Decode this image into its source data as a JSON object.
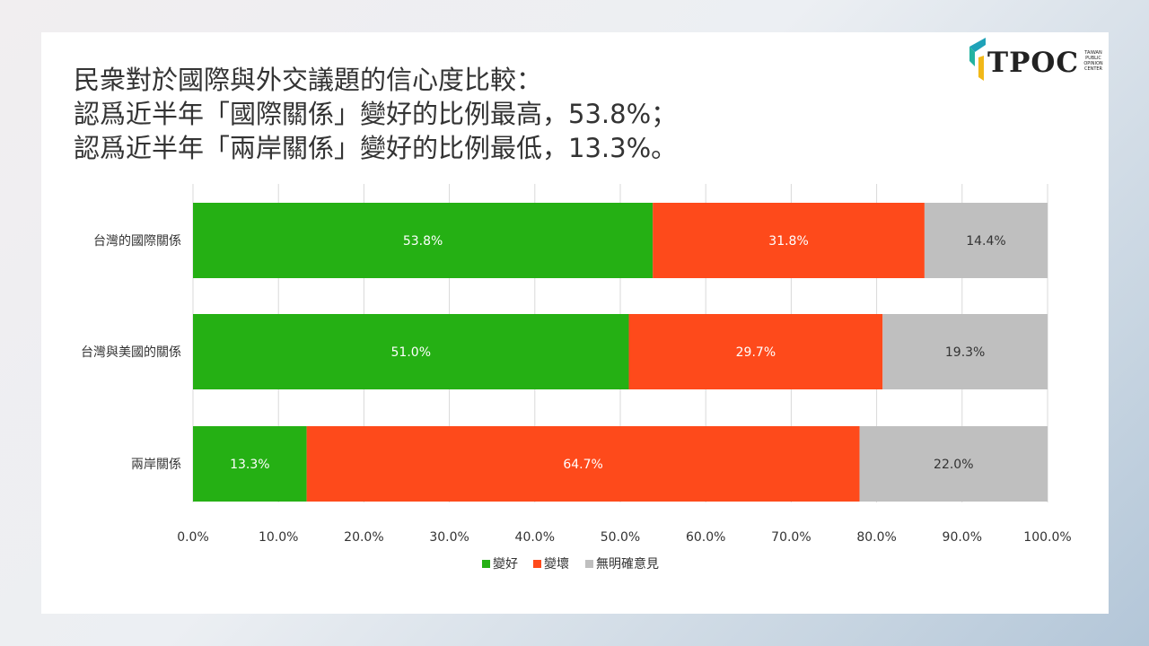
{
  "title_lines": [
    "民衆對於國際與外交議題的信心度比較：",
    "認爲近半年「國際關係」變好的比例最高，53.8%；",
    "認爲近半年「兩岸關係」變好的比例最低，13.3%。"
  ],
  "logo": {
    "text": "TPOC",
    "subtext": "TAIWAN PUBLIC OPINION CENTER"
  },
  "colors": {
    "good": "#25b014",
    "bad": "#fe4a1b",
    "unsure": "#bfbfbf"
  },
  "chart_data": {
    "type": "bar",
    "orientation": "horizontal",
    "stacked": true,
    "categories": [
      "台灣的國際關係",
      "台灣與美國的關係",
      "兩岸關係"
    ],
    "series": [
      {
        "name": "變好",
        "values": [
          53.8,
          51.0,
          13.3
        ]
      },
      {
        "name": "變壞",
        "values": [
          31.8,
          29.7,
          64.7
        ]
      },
      {
        "name": "無明確意見",
        "values": [
          14.4,
          19.3,
          22.0
        ]
      }
    ],
    "xlim": [
      0,
      100
    ],
    "xticks": [
      "0.0%",
      "10.0%",
      "20.0%",
      "30.0%",
      "40.0%",
      "50.0%",
      "60.0%",
      "70.0%",
      "80.0%",
      "90.0%",
      "100.0%"
    ],
    "data_labels": [
      [
        "53.8%",
        "51.0%",
        "13.3%"
      ],
      [
        "31.8%",
        "29.7%",
        "64.7%"
      ],
      [
        "14.4%",
        "19.3%",
        "22.0%"
      ]
    ],
    "grid": "vertical",
    "legend_position": "bottom"
  }
}
